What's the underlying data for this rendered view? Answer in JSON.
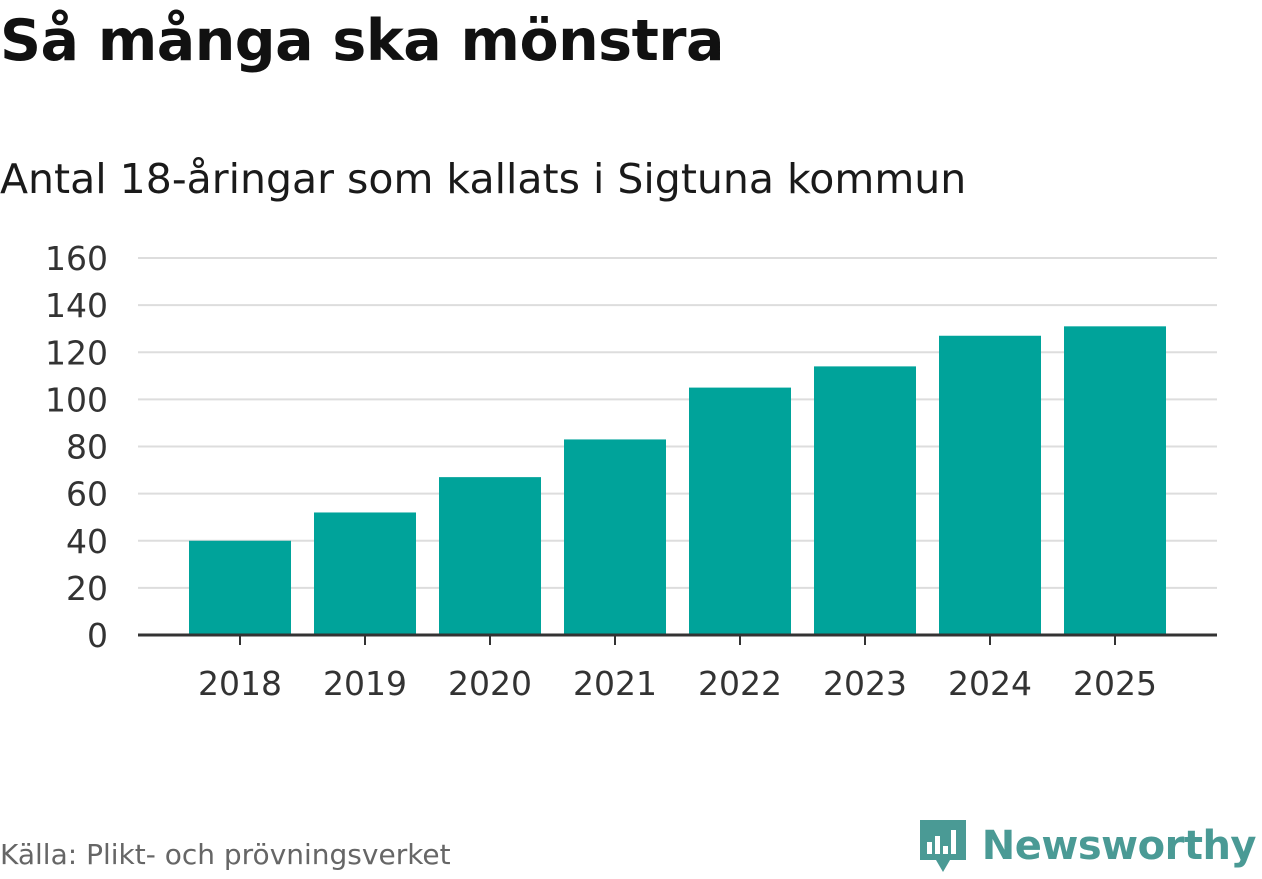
{
  "header": {
    "title": "Så många ska mönstra",
    "subtitle": "Antal 18-åringar som kallats i Sigtuna kommun"
  },
  "footer": {
    "source": "Källa: Plikt- och prövningsverket",
    "brand": "Newsworthy"
  },
  "colors": {
    "bar": "#00a39a",
    "grid": "#dddddd",
    "axis": "#333333",
    "brand": "#4a9a95"
  },
  "icons": {
    "brand_logo": "newsworthy-logo-icon"
  },
  "chart_data": {
    "type": "bar",
    "categories": [
      "2018",
      "2019",
      "2020",
      "2021",
      "2022",
      "2023",
      "2024",
      "2025"
    ],
    "values": [
      40,
      52,
      67,
      83,
      105,
      114,
      127,
      131
    ],
    "ylim": [
      0,
      160
    ],
    "yticks": [
      "0",
      "20",
      "40",
      "60",
      "80",
      "100",
      "120",
      "140",
      "160"
    ],
    "grid": true,
    "legend": "none"
  }
}
